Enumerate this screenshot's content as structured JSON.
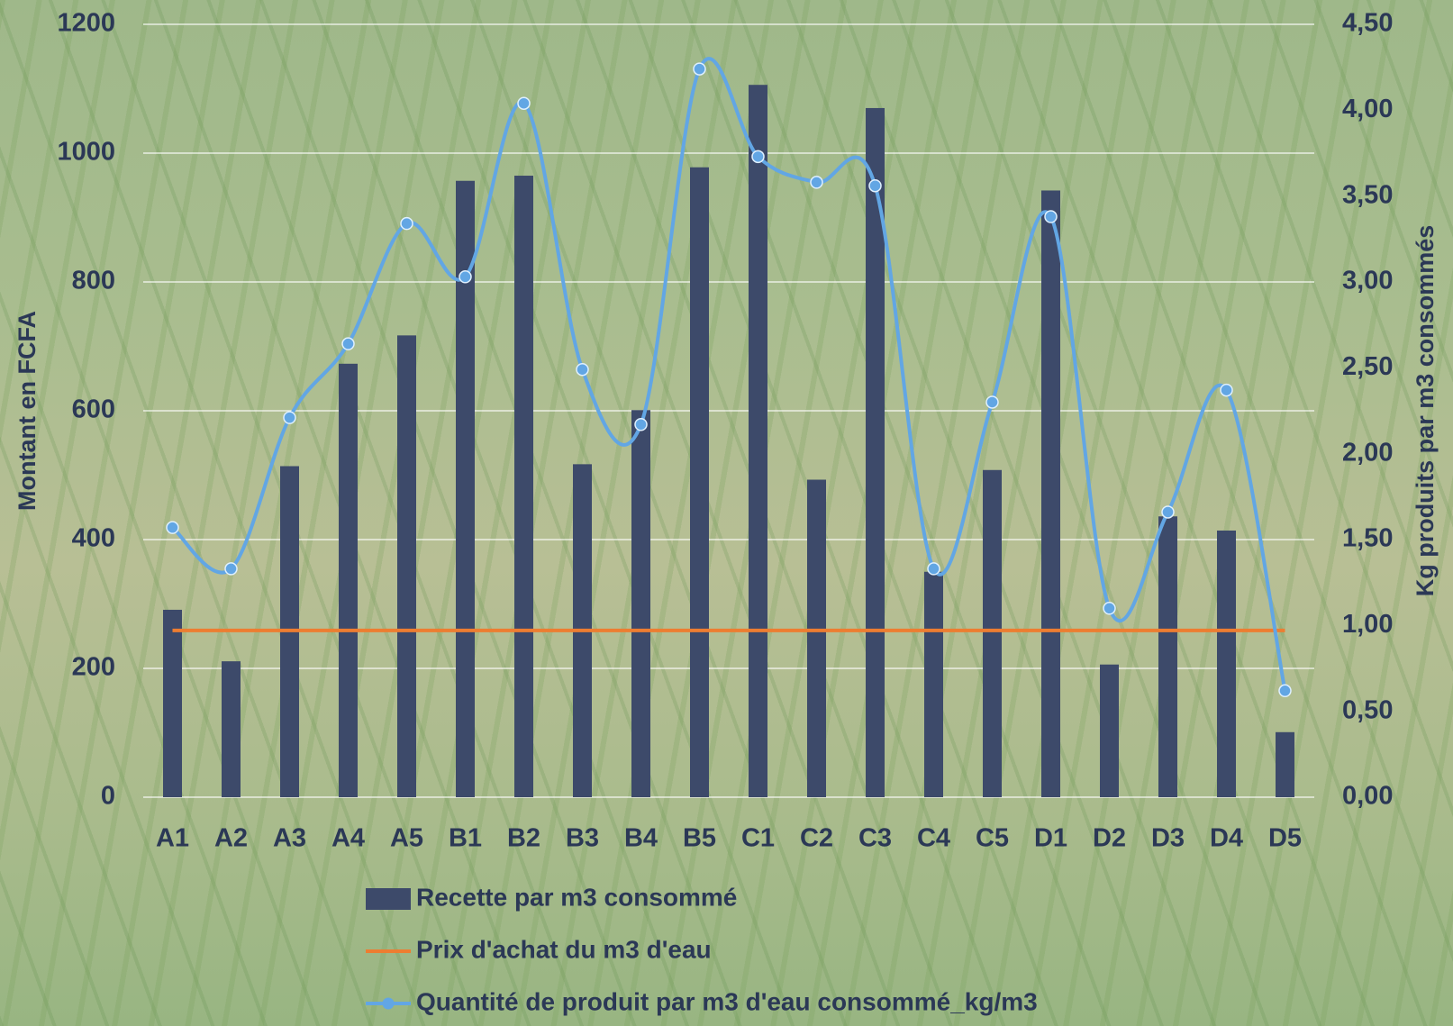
{
  "chart_data": {
    "type": "bar",
    "categories": [
      "A1",
      "A2",
      "A3",
      "A4",
      "A5",
      "B1",
      "B2",
      "B3",
      "B4",
      "B5",
      "C1",
      "C2",
      "C3",
      "C4",
      "C5",
      "D1",
      "D2",
      "D3",
      "D4",
      "D5"
    ],
    "series": [
      {
        "name": "Recette par m3 consommé",
        "type": "bar",
        "color": "#3d4a6a",
        "values": [
          291,
          211,
          514,
          673,
          717,
          957,
          965,
          517,
          601,
          978,
          1106,
          493,
          1070,
          350,
          508,
          942,
          206,
          436,
          414,
          101
        ]
      },
      {
        "name": "Prix d'achat du m3 d'eau",
        "type": "line",
        "color": "#ed7d31",
        "values": [
          259,
          259,
          259,
          259,
          259,
          259,
          259,
          259,
          259,
          259,
          259,
          259,
          259,
          259,
          259,
          259,
          259,
          259,
          259,
          259
        ]
      },
      {
        "name": "Quantité de produit par m3 d'eau consommé_kg/m3",
        "type": "line",
        "axis": "y2",
        "smooth": true,
        "markers": true,
        "color": "#62a6e4",
        "values": [
          1.57,
          1.33,
          2.21,
          2.64,
          3.34,
          3.03,
          4.04,
          2.49,
          2.17,
          4.24,
          3.73,
          3.58,
          3.56,
          1.33,
          2.3,
          3.38,
          1.1,
          1.66,
          2.37,
          0.62
        ]
      }
    ],
    "y_label": "Montant en FCFA",
    "y2_label": "Kg produits par m3 consommés",
    "ylim": [
      0,
      1200
    ],
    "yticks": [
      0,
      200,
      400,
      600,
      800,
      1000,
      1200
    ],
    "y2lim": [
      0,
      4.5
    ],
    "y2ticks": [
      {
        "value": 0,
        "label": "0,00"
      },
      {
        "value": 0.5,
        "label": "0,50"
      },
      {
        "value": 1,
        "label": "1,00"
      },
      {
        "value": 1.5,
        "label": "1,50"
      },
      {
        "value": 2,
        "label": "2,00"
      },
      {
        "value": 2.5,
        "label": "2,50"
      },
      {
        "value": 3,
        "label": "3,00"
      },
      {
        "value": 3.5,
        "label": "3,50"
      },
      {
        "value": 4,
        "label": "4,00"
      },
      {
        "value": 4.5,
        "label": "4,50"
      }
    ],
    "grid": true,
    "legend": "bottom"
  }
}
